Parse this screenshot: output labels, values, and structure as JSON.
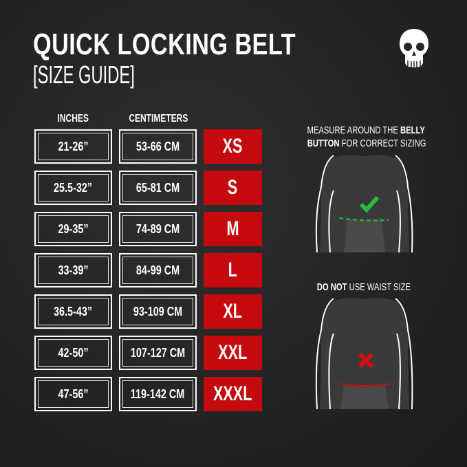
{
  "title": "QUICK LOCKING BELT",
  "subtitle": "[SIZE GUIDE]",
  "logo": "skull-icon",
  "headers": {
    "inches": "INCHES",
    "centimeters": "CENTIMETERS"
  },
  "rows": [
    {
      "inches": "21-26”",
      "cm": "53-66 CM",
      "size": "XS"
    },
    {
      "inches": "25.5-32”",
      "cm": "65-81 CM",
      "size": "S"
    },
    {
      "inches": "29-35”",
      "cm": "74-89 CM",
      "size": "M"
    },
    {
      "inches": "33-39”",
      "cm": "84-99 CM",
      "size": "L"
    },
    {
      "inches": "36.5-43”",
      "cm": "93-109 CM",
      "size": "XL"
    },
    {
      "inches": "42-50”",
      "cm": "107-127 CM",
      "size": "XXL"
    },
    {
      "inches": "47-56”",
      "cm": "119-142 CM",
      "size": "XXXL"
    }
  ],
  "notes": {
    "measure_pre": "MEASURE AROUND THE ",
    "measure_bold1": "BELLY",
    "measure_bold2": "BUTTON",
    "measure_post": " FOR CORRECT SIZING",
    "dont_bold": "DO NOT",
    "dont_post": " USE WAIST SIZE"
  },
  "colors": {
    "size_badge": "#c4090f",
    "correct": "#22c040",
    "incorrect": "#d01010",
    "background": "#262626"
  }
}
